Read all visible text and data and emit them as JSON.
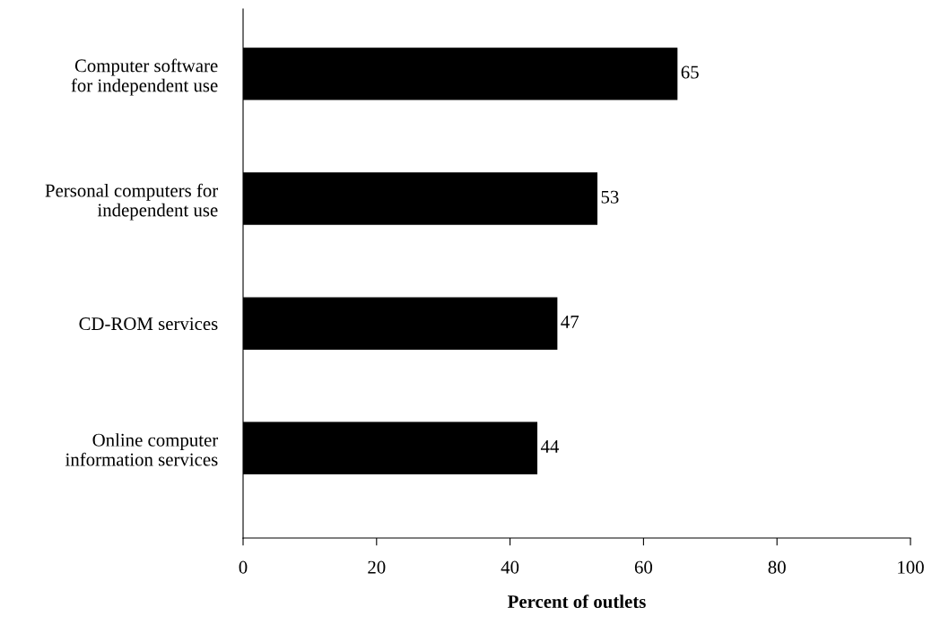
{
  "chart_data": {
    "type": "bar",
    "orientation": "horizontal",
    "xlabel": "Percent of outlets",
    "categories": [
      "Computer software\nfor independent use",
      "Personal computers for\nindependent use",
      "CD-ROM services",
      "Online computer\ninformation services"
    ],
    "values": [
      65,
      53,
      47,
      44
    ],
    "color": "#000000",
    "xlim": [
      0,
      100
    ],
    "xticks": [
      0,
      20,
      40,
      60,
      80,
      100
    ],
    "data_labels": true,
    "grid": false,
    "legend": false
  }
}
